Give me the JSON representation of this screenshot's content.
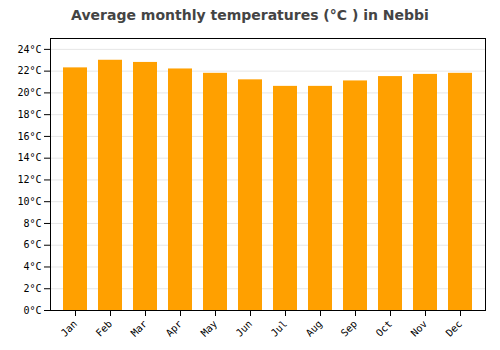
{
  "chart_data": {
    "type": "bar",
    "title": "Average monthly temperatures (°C ) in Nebbi",
    "categories": [
      "Jan",
      "Feb",
      "Mar",
      "Apr",
      "May",
      "Jun",
      "Jul",
      "Aug",
      "Sep",
      "Oct",
      "Nov",
      "Dec"
    ],
    "values": [
      22.3,
      23.0,
      22.8,
      22.2,
      21.8,
      21.2,
      20.6,
      20.6,
      21.1,
      21.5,
      21.7,
      21.8
    ],
    "color": "#FFA000",
    "ylim": [
      0,
      25
    ],
    "yticks": [
      {
        "value": 0,
        "label": "0°C"
      },
      {
        "value": 2,
        "label": "2°C"
      },
      {
        "value": 4,
        "label": "4°C"
      },
      {
        "value": 6,
        "label": "6°C"
      },
      {
        "value": 8,
        "label": "8°C"
      },
      {
        "value": 10,
        "label": "10°C"
      },
      {
        "value": 12,
        "label": "12°C"
      },
      {
        "value": 14,
        "label": "14°C"
      },
      {
        "value": 16,
        "label": "16°C"
      },
      {
        "value": 18,
        "label": "18°C"
      },
      {
        "value": 20,
        "label": "20°C"
      },
      {
        "value": 22,
        "label": "22°C"
      },
      {
        "value": 24,
        "label": "24°C"
      }
    ],
    "grid": true
  }
}
